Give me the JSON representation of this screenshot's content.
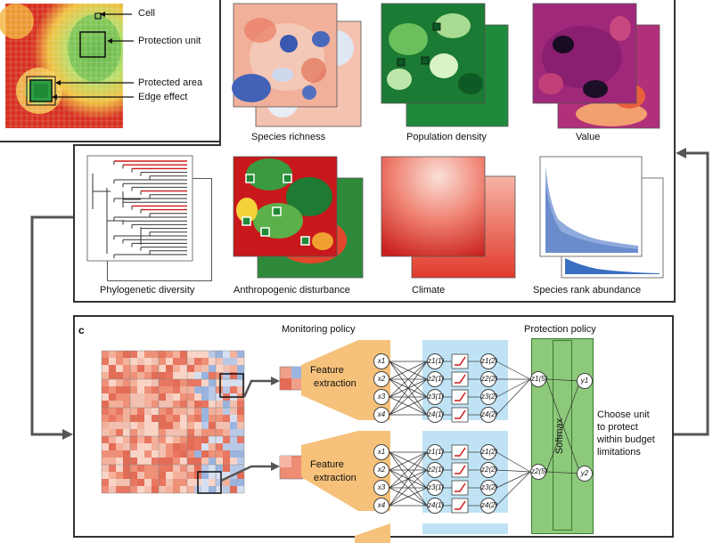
{
  "panel_a": {
    "labels": {
      "cell": "Cell",
      "protection_unit": "Protection unit",
      "protected_area": "Protected area",
      "edge_effect": "Edge effect"
    }
  },
  "panel_b": {
    "captions": {
      "species_richness": "Species richness",
      "population_density": "Population density",
      "value": "Value",
      "phylogenetic_diversity": "Phylogenetic diversity",
      "anthropogenic_disturbance": "Anthropogenic disturbance",
      "climate": "Climate",
      "species_rank_abundance": "Species rank abundance"
    }
  },
  "panel_c": {
    "letter": "c",
    "monitoring_title": "Monitoring policy",
    "protection_title": "Protection policy",
    "feature_extraction_1": "Feature",
    "feature_extraction_2": "extraction",
    "softmax": "Softmax",
    "choose_text_1": "Choose unit",
    "choose_text_2": "to protect",
    "choose_text_3": "within budget",
    "choose_text_4": "limitations",
    "input_nodes": [
      "x1",
      "x2",
      "x3",
      "x4"
    ],
    "hidden1_nodes": [
      "z1(1)",
      "z2(1)",
      "z3(1)",
      "z4(1)"
    ],
    "hidden2_nodes": [
      "z1(2)",
      "z2(2)",
      "z3(2)",
      "z4(2)"
    ],
    "output_nodes": [
      "y1",
      "y2"
    ],
    "pooled_nodes": [
      "z1(5)",
      "z2(5)"
    ]
  },
  "colors": {
    "heat_red": "#c4161c",
    "heat_green": "#2e9a3e",
    "orange": "#f6c17a",
    "light_blue": "#bfe3f5",
    "softmax_green": "#8cc97a"
  }
}
